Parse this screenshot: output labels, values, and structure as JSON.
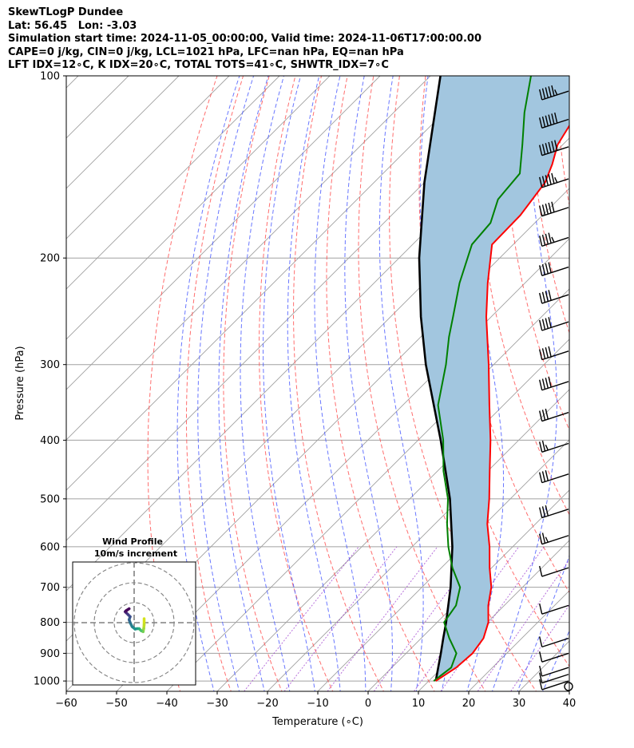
{
  "header": {
    "title": "SkewTLogP Dundee",
    "location": "Lat: 56.45   Lon: -3.03",
    "times": "Simulation start time: 2024-11-05_00:00:00, Valid time: 2024-11-06T17:00:00.00",
    "indices1": "CAPE=0 j/kg, CIN=0 j/kg, LCL=1021 hPa, LFC=nan hPa, EQ=nan hPa",
    "indices2": "LFT IDX=12∘C, K IDX=20∘C, TOTAL TOTS=41∘C, SHWTR_IDX=7∘C"
  },
  "chart_data": {
    "type": "line",
    "title": "SkewTLogP Dundee",
    "xlabel": "Temperature (∘C)",
    "ylabel": "Pressure (hPa)",
    "xlim": [
      -60,
      40
    ],
    "ylim": [
      1040,
      100
    ],
    "y_scale": "log",
    "grid": true,
    "x_ticks": [
      "−60",
      "−50",
      "−40",
      "−30",
      "−20",
      "−10",
      "0",
      "10",
      "20",
      "30",
      "40"
    ],
    "y_ticks": [
      "100",
      "200",
      "300",
      "400",
      "500",
      "600",
      "700",
      "800",
      "900",
      "1000"
    ],
    "series": [
      {
        "name": "",
        "color": "#ff0000",
        "p": [
          1000,
          950,
          900,
          850,
          800,
          750,
          700,
          650,
          600,
          550,
          500,
          450,
          400,
          350,
          300,
          250,
          220,
          190,
          170,
          150,
          140,
          130,
          120,
          110,
          100
        ],
        "t": [
          11.4,
          12.8,
          13.2,
          12.4,
          10.2,
          6.8,
          3.8,
          -0.4,
          -4.6,
          -9.6,
          -14.2,
          -19.6,
          -25.6,
          -32.8,
          -41.0,
          -51.0,
          -57.4,
          -64.2,
          -64.4,
          -66.0,
          -68.2,
          -71.0,
          -72.6,
          -76.2,
          -79.4
        ]
      },
      {
        "name": "",
        "color": "#008000",
        "p": [
          1000,
          950,
          900,
          850,
          800,
          750,
          700,
          650,
          600,
          550,
          500,
          450,
          400,
          350,
          300,
          270,
          250,
          220,
          190,
          175,
          160,
          145,
          130,
          115,
          100
        ],
        "td": [
          11.0,
          11.8,
          10.0,
          5.6,
          1.4,
          0.4,
          -2.4,
          -7.8,
          -12.8,
          -17.6,
          -22.4,
          -28.8,
          -35.0,
          -43.0,
          -49.5,
          -54.4,
          -57.6,
          -63.0,
          -68.2,
          -68.8,
          -72.0,
          -72.8,
          -78.0,
          -84.0,
          -90.0
        ]
      },
      {
        "name": "",
        "color": "#000000",
        "p": [
          1000,
          950,
          900,
          850,
          800,
          700,
          600,
          500,
          400,
          300,
          250,
          200,
          150,
          100
        ],
        "t": [
          11.4,
          9.2,
          6.9,
          4.4,
          1.8,
          -4.3,
          -12.0,
          -22.0,
          -35.5,
          -53.5,
          -64.0,
          -76.0,
          -90.0,
          -108.0
        ]
      }
    ],
    "wind_barbs": [
      {
        "p": 1021,
        "spd": 0
      },
      {
        "p": 1000,
        "spd": 12
      },
      {
        "p": 975,
        "spd": 14
      },
      {
        "p": 950,
        "spd": 14
      },
      {
        "p": 900,
        "spd": 10
      },
      {
        "p": 850,
        "spd": 10
      },
      {
        "p": 750,
        "spd": 10
      },
      {
        "p": 650,
        "spd": 10
      },
      {
        "p": 575,
        "spd": 25
      },
      {
        "p": 520,
        "spd": 30
      },
      {
        "p": 455,
        "spd": 30
      },
      {
        "p": 405,
        "spd": 25
      },
      {
        "p": 360,
        "spd": 30
      },
      {
        "p": 320,
        "spd": 40
      },
      {
        "p": 285,
        "spd": 40
      },
      {
        "p": 255,
        "spd": 40
      },
      {
        "p": 230,
        "spd": 40
      },
      {
        "p": 207,
        "spd": 40
      },
      {
        "p": 185,
        "spd": 45
      },
      {
        "p": 165,
        "spd": 50
      },
      {
        "p": 148,
        "spd": 55
      },
      {
        "p": 131,
        "spd": 60
      },
      {
        "p": 118,
        "spd": 60
      },
      {
        "p": 106,
        "spd": 55
      }
    ],
    "hodograph": {
      "title": "Wind Profile",
      "subtitle": "10m/s increment",
      "u": [
        5.0,
        5.0,
        4.8,
        4.5,
        3.5,
        2.5,
        1.5,
        0.5,
        -1.0,
        -2.0,
        -2.5,
        -2.0,
        -3.0,
        -4.0,
        -4.5,
        -4.0,
        -2.5
      ],
      "v": [
        2.0,
        -1.0,
        -3.0,
        -4.5,
        -4.0,
        -3.0,
        -3.0,
        -3.2,
        -2.0,
        0.0,
        1.5,
        3.0,
        4.0,
        5.0,
        5.5,
        6.0,
        7.0
      ]
    }
  }
}
